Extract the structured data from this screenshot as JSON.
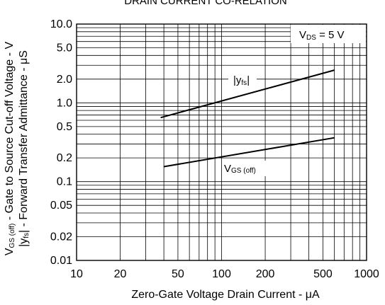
{
  "chart_data": {
    "type": "line",
    "title": "DRAIN CURRENT CO-RELATION",
    "xlabel": "Zero-Gate Voltage Drain Current - μA",
    "ylabel_line1": "V",
    "ylabel_line1_sub": "GS (off)",
    "ylabel_line1_rest": " - Gate to Source Cut-off Voltage - V",
    "ylabel_line2": "|y",
    "ylabel_line2_sub": "fs",
    "ylabel_line2_rest": "| - Forward Transfer Admittance - μS",
    "x_scale": "log",
    "y_scale": "log",
    "xlim": [
      10,
      1000
    ],
    "ylim": [
      0.01,
      10.0
    ],
    "grid": true,
    "x_ticks": [
      10,
      20,
      50,
      100,
      200,
      500,
      1000
    ],
    "x_tick_labels": [
      "10",
      "20",
      "50",
      "100",
      "200",
      "500",
      "1000"
    ],
    "y_ticks": [
      10.0,
      5.0,
      2.0,
      1.0,
      0.5,
      0.2,
      0.1,
      0.05,
      0.02,
      0.01
    ],
    "y_tick_labels": [
      "10.0",
      "5.0",
      "2.0",
      "1.0",
      "0.5",
      "0.2",
      "0.1",
      "0.05",
      "0.02",
      "0.01"
    ],
    "condition": {
      "main": "V",
      "sub": "DS",
      "rest": " = 5 V"
    },
    "series": [
      {
        "name": "|yfs|",
        "label_main": "|y",
        "label_sub": "fs",
        "label_rest": "|",
        "x": [
          38,
          600
        ],
        "y": [
          0.65,
          2.6
        ]
      },
      {
        "name": "VGS (off)",
        "label_main": "V",
        "label_sub": "GS (off)",
        "label_rest": "",
        "x": [
          40,
          600
        ],
        "y": [
          0.155,
          0.36
        ]
      }
    ]
  }
}
